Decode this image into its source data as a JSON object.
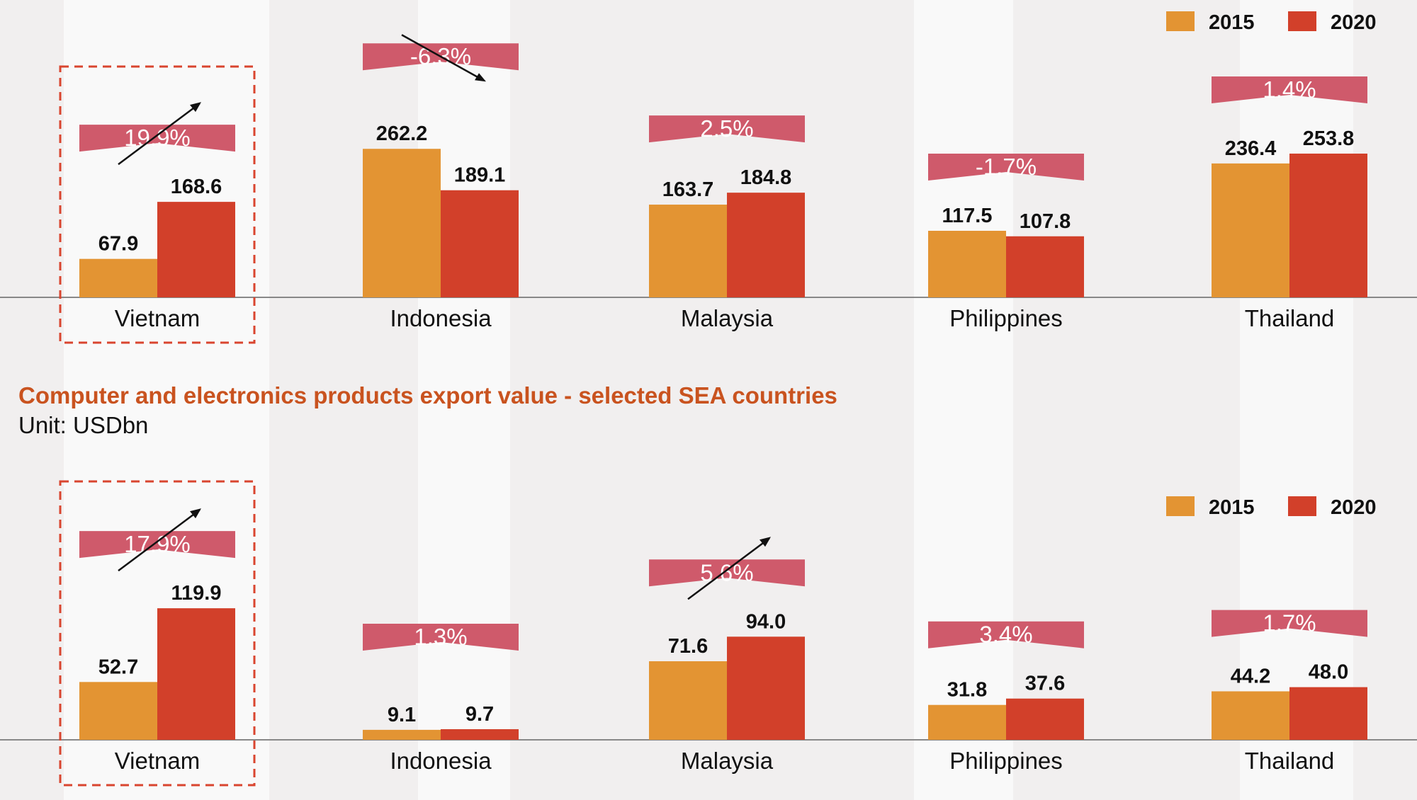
{
  "subtitle": "Computer and electronics products export value - selected SEA countries",
  "unit_label": "Unit: USDbn",
  "colors": {
    "bar_2015": "#e39433",
    "bar_2020": "#d2402a",
    "badge": "#cf5a6b",
    "highlight_box": "#d9452f",
    "axis": "#888888",
    "title": "#c9531f"
  },
  "chart_data": [
    {
      "type": "bar",
      "categories": [
        "Vietnam",
        "Indonesia",
        "Malaysia",
        "Philippines",
        "Thailand"
      ],
      "series": [
        {
          "name": "2015",
          "values": [
            67.9,
            262.2,
            163.7,
            117.5,
            236.4
          ]
        },
        {
          "name": "2020",
          "values": [
            168.6,
            189.1,
            184.8,
            107.8,
            253.8
          ]
        }
      ],
      "growth_labels": [
        "19.9%",
        "-6.3%",
        "2.5%",
        "-1.7%",
        "1.4%"
      ],
      "trend": [
        "up",
        "down",
        "none",
        "none",
        "none"
      ],
      "highlighted_category": "Vietnam",
      "legend_position": "top-right",
      "ylim": [
        0,
        300
      ]
    },
    {
      "type": "bar",
      "title": "Computer and electronics products export value - selected SEA countries",
      "unit": "Unit: USDbn",
      "categories": [
        "Vietnam",
        "Indonesia",
        "Malaysia",
        "Philippines",
        "Thailand"
      ],
      "series": [
        {
          "name": "2015",
          "values": [
            52.7,
            9.1,
            71.6,
            31.8,
            44.2
          ]
        },
        {
          "name": "2020",
          "values": [
            119.9,
            9.7,
            94.0,
            37.6,
            48.0
          ]
        }
      ],
      "growth_labels": [
        "17.9%",
        "1.3%",
        "5.6%",
        "3.4%",
        "1.7%"
      ],
      "trend": [
        "up",
        "none",
        "up",
        "none",
        "none"
      ],
      "highlighted_category": "Vietnam",
      "legend_position": "top-right",
      "ylim": [
        0,
        150
      ]
    }
  ]
}
